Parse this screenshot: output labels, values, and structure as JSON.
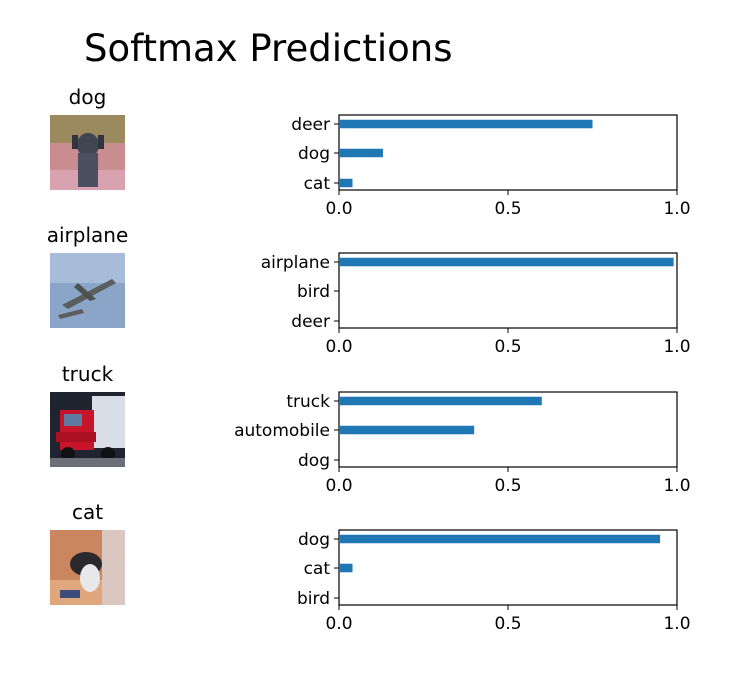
{
  "title": "Softmax Predictions",
  "colors": {
    "bar": "#1f77b4",
    "axis": "#000000",
    "background": "#ffffff"
  },
  "chart_data": [
    {
      "type": "bar",
      "orientation": "horizontal",
      "image_label": "dog",
      "image_icon": "dog-photo",
      "categories": [
        "deer",
        "dog",
        "cat"
      ],
      "values": [
        0.75,
        0.13,
        0.04
      ],
      "xlim": [
        0,
        1.0
      ],
      "xticks": [
        "0.0",
        "0.5",
        "1.0"
      ],
      "grid": false
    },
    {
      "type": "bar",
      "orientation": "horizontal",
      "image_label": "airplane",
      "image_icon": "airplane-photo",
      "categories": [
        "airplane",
        "bird",
        "deer"
      ],
      "values": [
        0.99,
        0.0,
        0.0
      ],
      "xlim": [
        0,
        1.0
      ],
      "xticks": [
        "0.0",
        "0.5",
        "1.0"
      ],
      "grid": false
    },
    {
      "type": "bar",
      "orientation": "horizontal",
      "image_label": "truck",
      "image_icon": "truck-photo",
      "categories": [
        "truck",
        "automobile",
        "dog"
      ],
      "values": [
        0.6,
        0.4,
        0.0
      ],
      "xlim": [
        0,
        1.0
      ],
      "xticks": [
        "0.0",
        "0.5",
        "1.0"
      ],
      "grid": false
    },
    {
      "type": "bar",
      "orientation": "horizontal",
      "image_label": "cat",
      "image_icon": "cat-photo",
      "categories": [
        "dog",
        "cat",
        "bird"
      ],
      "values": [
        0.95,
        0.04,
        0.0
      ],
      "xlim": [
        0,
        1.0
      ],
      "xticks": [
        "0.0",
        "0.5",
        "1.0"
      ],
      "grid": false
    }
  ]
}
